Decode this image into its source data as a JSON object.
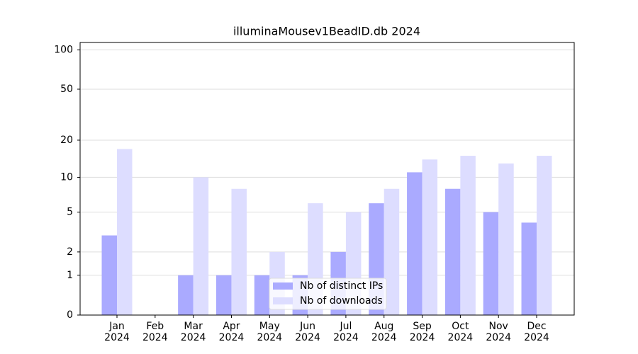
{
  "chart_data": {
    "type": "bar",
    "title": "illuminaMousev1BeadID.db 2024",
    "categories": [
      "Jan\n2024",
      "Feb\n2024",
      "Mar\n2024",
      "Apr\n2024",
      "May\n2024",
      "Jun\n2024",
      "Jul\n2024",
      "Aug\n2024",
      "Sep\n2024",
      "Oct\n2024",
      "Nov\n2024",
      "Dec\n2024"
    ],
    "series": [
      {
        "name": "Nb of distinct IPs",
        "color": "#aaaaff",
        "values": [
          3,
          0,
          1,
          1,
          1,
          1,
          2,
          6,
          11,
          8,
          5,
          4
        ]
      },
      {
        "name": "Nb of downloads",
        "color": "#ddddff",
        "values": [
          17,
          0,
          10,
          8,
          2,
          6,
          5,
          8,
          14,
          15,
          13,
          15
        ]
      }
    ],
    "yscale": "log1p",
    "ylim": [
      0,
      114
    ],
    "yticks": [
      0,
      1,
      2,
      5,
      10,
      20,
      50,
      100
    ],
    "grid": true,
    "legend": "lower center"
  }
}
